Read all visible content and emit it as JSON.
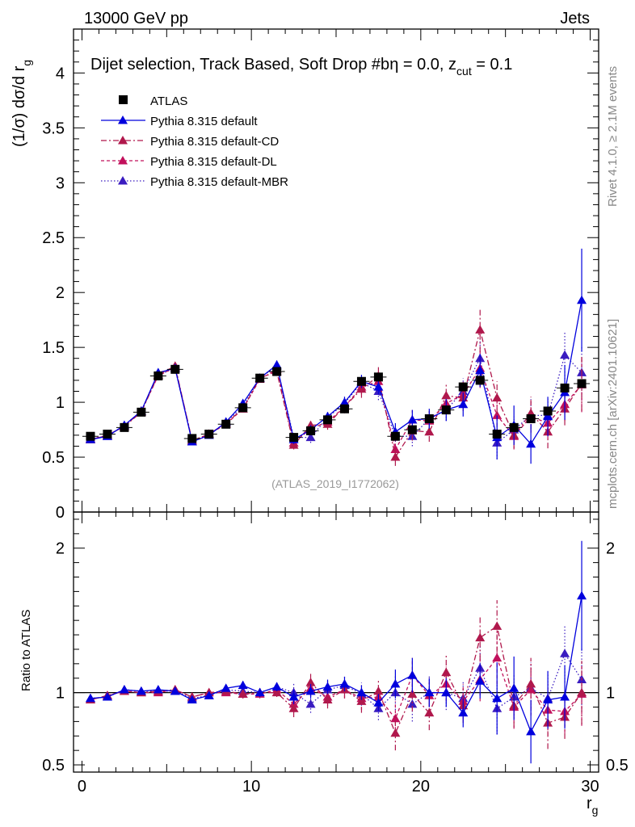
{
  "header": {
    "left": "13000 GeV pp",
    "right": "Jets",
    "side_top": "Rivet 4.1.0, ≥ 2.1M events",
    "side_bottom": "mcplots.cern.ch [arXiv:2401.10621]",
    "analysis_id": "(ATLAS_2019_I1772062)"
  },
  "chart_data": {
    "type": "scatter",
    "title_parts": {
      "main": "Dijet selection, Track Based, Soft Drop #b",
      "eta": "η = 0.0, z",
      "sub": "cut",
      "tail": " = 0.1"
    },
    "ylabel_parts": {
      "main": "(1/σ) dσ/d r",
      "sub": "g"
    },
    "xlabel_parts": {
      "main": "r",
      "sub": "g"
    },
    "ratio_ylabel": "Ratio to ATLAS",
    "xlim": [
      -0.5,
      30.5
    ],
    "ylim": [
      0,
      4.4
    ],
    "ratio_ylim": [
      0.45,
      2.25
    ],
    "x_ticks": [
      0,
      10,
      20,
      30
    ],
    "y_ticks": [
      0,
      0.5,
      1,
      1.5,
      2,
      2.5,
      3,
      3.5,
      4
    ],
    "ratio_ticks": [
      0.5,
      1,
      2
    ],
    "x": [
      0.5,
      1.5,
      2.5,
      3.5,
      4.5,
      5.5,
      6.5,
      7.5,
      8.5,
      9.5,
      10.5,
      11.5,
      12.5,
      13.5,
      14.5,
      15.5,
      16.5,
      17.5,
      18.5,
      19.5,
      20.5,
      21.5,
      22.5,
      23.5,
      24.5,
      25.5,
      26.5,
      27.5,
      28.5,
      29.5
    ],
    "reference": {
      "name": "ATLAS",
      "color": "#000000",
      "values": [
        0.69,
        0.71,
        0.77,
        0.91,
        1.24,
        1.3,
        0.67,
        0.71,
        0.8,
        0.95,
        1.22,
        1.28,
        0.68,
        0.74,
        0.84,
        0.94,
        1.19,
        1.23,
        0.69,
        0.75,
        0.85,
        0.93,
        1.14,
        1.2,
        0.71,
        0.77,
        0.85,
        0.92,
        1.13,
        1.17
      ]
    },
    "series": [
      {
        "name": "Pythia 8.315 default",
        "color": "#0000dd",
        "dash": "",
        "values": [
          0.66,
          0.69,
          0.79,
          0.92,
          1.27,
          1.31,
          0.64,
          0.7,
          0.82,
          0.99,
          1.22,
          1.34,
          0.66,
          0.75,
          0.87,
          1.0,
          1.19,
          1.14,
          0.73,
          0.84,
          0.85,
          0.93,
          0.98,
          1.29,
          0.68,
          0.79,
          0.62,
          0.87,
          1.09,
          1.93
        ],
        "errors": [
          0.02,
          0.02,
          0.02,
          0.02,
          0.02,
          0.02,
          0.02,
          0.02,
          0.02,
          0.03,
          0.03,
          0.04,
          0.04,
          0.04,
          0.04,
          0.05,
          0.06,
          0.07,
          0.08,
          0.09,
          0.09,
          0.1,
          0.11,
          0.15,
          0.2,
          0.18,
          0.18,
          0.18,
          0.25,
          0.47
        ],
        "ratio": [
          0.96,
          0.97,
          1.02,
          1.01,
          1.02,
          1.01,
          0.95,
          0.98,
          1.03,
          1.05,
          1.0,
          1.04,
          0.97,
          1.01,
          1.04,
          1.06,
          1.0,
          0.93,
          1.06,
          1.12,
          1.0,
          1.0,
          0.86,
          1.08,
          0.96,
          1.03,
          0.73,
          0.95,
          0.97,
          1.67
        ],
        "ratio_errors": [
          0.02,
          0.02,
          0.02,
          0.02,
          0.02,
          0.02,
          0.02,
          0.02,
          0.02,
          0.03,
          0.03,
          0.03,
          0.05,
          0.05,
          0.05,
          0.05,
          0.05,
          0.06,
          0.1,
          0.12,
          0.1,
          0.1,
          0.1,
          0.12,
          0.25,
          0.22,
          0.22,
          0.2,
          0.22,
          0.38
        ]
      },
      {
        "name": "Pythia 8.315 default-CD",
        "color": "#b0184c",
        "dash": "7,3,2,3",
        "values": [
          0.66,
          0.7,
          0.78,
          0.91,
          1.25,
          1.33,
          0.65,
          0.71,
          0.81,
          0.94,
          1.22,
          1.28,
          0.61,
          0.79,
          0.8,
          0.96,
          1.12,
          1.24,
          0.5,
          0.74,
          0.73,
          1.06,
          1.04,
          1.66,
          1.04,
          0.7,
          0.9,
          0.73,
          0.94,
          1.17
        ],
        "errors": [
          0.02,
          0.02,
          0.02,
          0.02,
          0.02,
          0.02,
          0.02,
          0.02,
          0.02,
          0.03,
          0.03,
          0.04,
          0.04,
          0.05,
          0.05,
          0.06,
          0.08,
          0.08,
          0.08,
          0.09,
          0.09,
          0.1,
          0.12,
          0.2,
          0.15,
          0.12,
          0.15,
          0.15,
          0.15,
          0.25
        ],
        "ratio": [
          0.95,
          0.98,
          1.01,
          1.0,
          1.01,
          1.02,
          0.97,
          1.0,
          1.01,
          0.99,
          1.0,
          1.0,
          0.89,
          1.07,
          0.95,
          1.02,
          0.94,
          1.01,
          0.72,
          0.99,
          0.86,
          1.14,
          0.91,
          1.38,
          1.46,
          0.91,
          1.06,
          0.79,
          0.83,
          1.0
        ],
        "ratio_errors": [
          0.02,
          0.02,
          0.02,
          0.02,
          0.02,
          0.02,
          0.02,
          0.02,
          0.02,
          0.03,
          0.03,
          0.03,
          0.06,
          0.06,
          0.06,
          0.06,
          0.08,
          0.08,
          0.12,
          0.12,
          0.12,
          0.12,
          0.12,
          0.15,
          0.18,
          0.15,
          0.18,
          0.18,
          0.15,
          0.22
        ]
      },
      {
        "name": "Pythia 8.315 default-DL",
        "color": "#c2105c",
        "dash": "4,3",
        "values": [
          0.66,
          0.7,
          0.78,
          0.92,
          1.24,
          1.32,
          0.65,
          0.71,
          0.8,
          0.94,
          1.21,
          1.3,
          0.63,
          0.76,
          0.82,
          0.96,
          1.14,
          1.19,
          0.57,
          0.84,
          0.83,
          0.99,
          1.07,
          1.31,
          0.88,
          0.69,
          0.87,
          0.81,
          0.98,
          1.16
        ],
        "errors": [
          0.02,
          0.02,
          0.02,
          0.02,
          0.02,
          0.02,
          0.02,
          0.02,
          0.02,
          0.03,
          0.03,
          0.04,
          0.04,
          0.05,
          0.05,
          0.06,
          0.07,
          0.08,
          0.08,
          0.09,
          0.09,
          0.1,
          0.12,
          0.18,
          0.15,
          0.12,
          0.15,
          0.15,
          0.15,
          0.25
        ],
        "ratio": [
          0.95,
          0.98,
          1.01,
          1.0,
          1.0,
          1.02,
          0.97,
          1.0,
          1.0,
          0.99,
          0.99,
          1.02,
          0.92,
          1.03,
          0.97,
          1.02,
          0.96,
          0.97,
          0.82,
          1.12,
          0.98,
          1.06,
          0.94,
          1.09,
          1.24,
          0.9,
          1.02,
          0.88,
          0.87,
          0.99
        ],
        "ratio_errors": [
          0.02,
          0.02,
          0.02,
          0.02,
          0.02,
          0.02,
          0.02,
          0.02,
          0.02,
          0.03,
          0.03,
          0.03,
          0.06,
          0.06,
          0.06,
          0.06,
          0.08,
          0.08,
          0.12,
          0.12,
          0.12,
          0.12,
          0.12,
          0.15,
          0.18,
          0.15,
          0.18,
          0.18,
          0.15,
          0.22
        ]
      },
      {
        "name": "Pythia 8.315 default-MBR",
        "color": "#3a1cc0",
        "dash": "1.5,2.5",
        "values": [
          0.67,
          0.69,
          0.79,
          0.92,
          1.25,
          1.31,
          0.64,
          0.7,
          0.82,
          0.96,
          1.22,
          1.33,
          0.68,
          0.68,
          0.86,
          0.99,
          1.18,
          1.1,
          0.69,
          0.69,
          0.85,
          0.93,
          1.1,
          1.4,
          0.63,
          0.75,
          0.88,
          0.88,
          1.43,
          1.27
        ],
        "errors": [
          0.02,
          0.02,
          0.02,
          0.02,
          0.02,
          0.02,
          0.02,
          0.02,
          0.02,
          0.03,
          0.03,
          0.04,
          0.04,
          0.05,
          0.05,
          0.06,
          0.06,
          0.08,
          0.08,
          0.09,
          0.09,
          0.1,
          0.12,
          0.18,
          0.15,
          0.12,
          0.15,
          0.15,
          0.22,
          0.25
        ],
        "ratio": [
          0.96,
          0.97,
          1.02,
          1.01,
          1.01,
          1.01,
          0.96,
          0.98,
          1.02,
          1.01,
          1.0,
          1.04,
          1.0,
          0.92,
          1.02,
          1.05,
          0.99,
          0.89,
          1.0,
          0.92,
          1.0,
          1.0,
          0.96,
          1.17,
          0.89,
          0.97,
          1.03,
          0.96,
          1.27,
          1.09
        ],
        "ratio_errors": [
          0.02,
          0.02,
          0.02,
          0.02,
          0.02,
          0.02,
          0.02,
          0.02,
          0.02,
          0.03,
          0.03,
          0.03,
          0.06,
          0.06,
          0.06,
          0.06,
          0.08,
          0.08,
          0.12,
          0.12,
          0.12,
          0.12,
          0.12,
          0.15,
          0.18,
          0.15,
          0.18,
          0.18,
          0.2,
          0.22
        ]
      }
    ]
  }
}
